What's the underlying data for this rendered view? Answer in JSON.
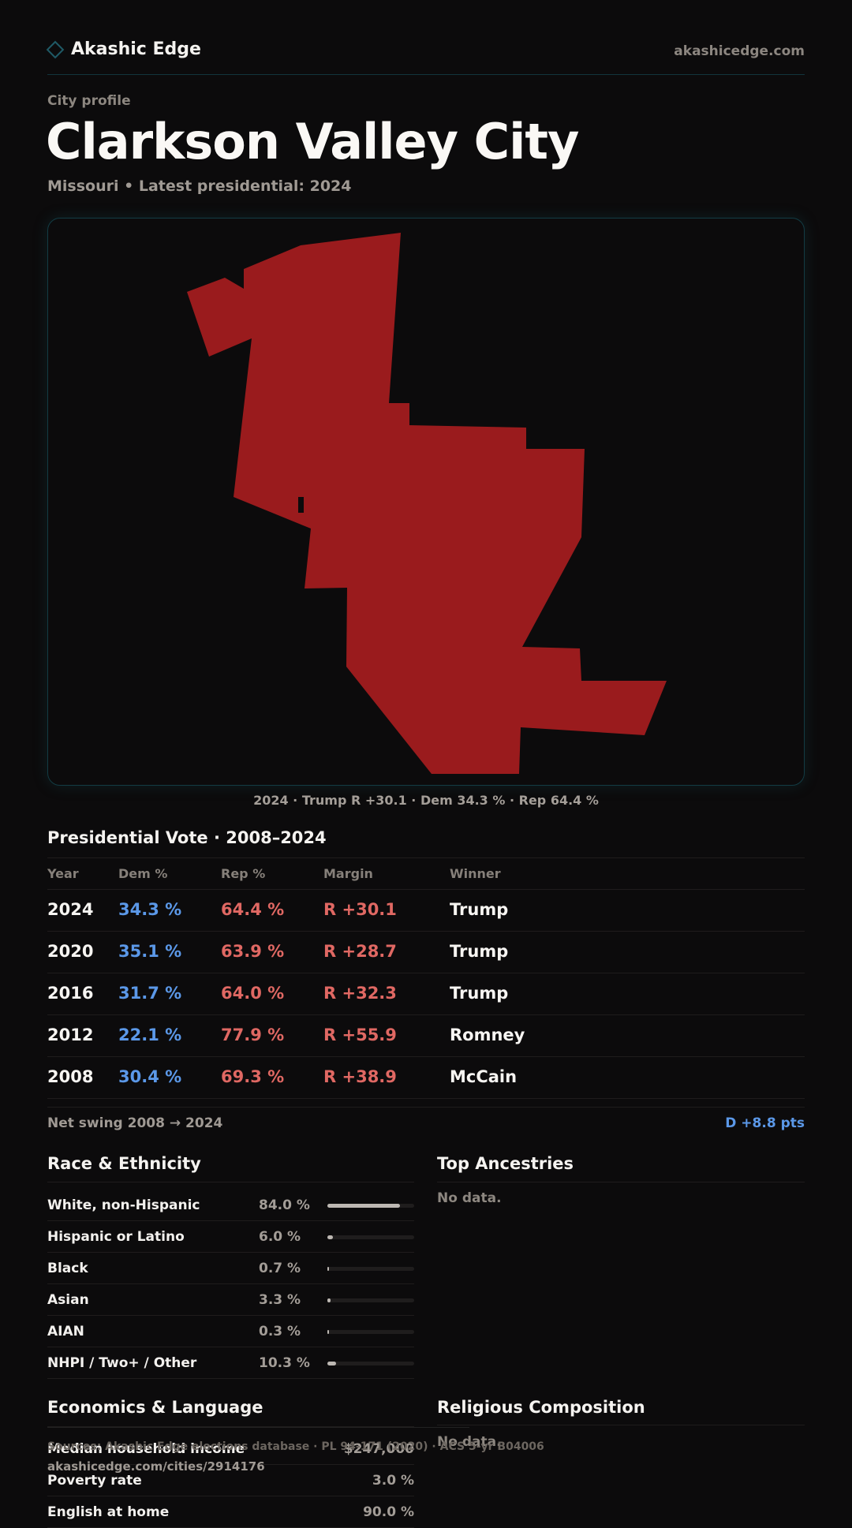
{
  "header": {
    "brand": "Akashic Edge",
    "site": "akashicedge.com"
  },
  "page": {
    "eyebrow": "City profile",
    "title": "Clarkson Valley City",
    "subtitle": "Missouri • Latest presidential: 2024"
  },
  "map": {
    "fill_color": "#9a1b1d",
    "caption": "2024 · Trump R +30.1 · Dem 34.3 % · Rep 64.4 %"
  },
  "vote": {
    "title": "Presidential Vote · 2008–2024",
    "columns": [
      "Year",
      "Dem %",
      "Rep %",
      "Margin",
      "Winner"
    ],
    "rows": [
      {
        "year": "2024",
        "dem": "34.3 %",
        "rep": "64.4 %",
        "margin": "R +30.1",
        "winner": "Trump"
      },
      {
        "year": "2020",
        "dem": "35.1 %",
        "rep": "63.9 %",
        "margin": "R +28.7",
        "winner": "Trump"
      },
      {
        "year": "2016",
        "dem": "31.7 %",
        "rep": "64.0 %",
        "margin": "R +32.3",
        "winner": "Trump"
      },
      {
        "year": "2012",
        "dem": "22.1 %",
        "rep": "77.9 %",
        "margin": "R +55.9",
        "winner": "Romney"
      },
      {
        "year": "2008",
        "dem": "30.4 %",
        "rep": "69.3 %",
        "margin": "R +38.9",
        "winner": "McCain"
      }
    ],
    "swing_label": "Net swing 2008 → 2024",
    "swing_value": "D +8.8 pts"
  },
  "race": {
    "title": "Race & Ethnicity",
    "rows": [
      {
        "label": "White, non-Hispanic",
        "pct": "84.0 %",
        "value": 84.0
      },
      {
        "label": "Hispanic or Latino",
        "pct": "6.0 %",
        "value": 6.0
      },
      {
        "label": "Black",
        "pct": "0.7 %",
        "value": 0.7
      },
      {
        "label": "Asian",
        "pct": "3.3 %",
        "value": 3.3
      },
      {
        "label": "AIAN",
        "pct": "0.3 %",
        "value": 0.3
      },
      {
        "label": "NHPI / Two+ / Other",
        "pct": "10.3 %",
        "value": 10.3
      }
    ]
  },
  "ancestries": {
    "title": "Top Ancestries",
    "empty": "No data."
  },
  "economics": {
    "title": "Economics & Language",
    "rows": [
      {
        "label": "Median household income",
        "value": "$247,000"
      },
      {
        "label": "Poverty rate",
        "value": "3.0 %"
      },
      {
        "label": "English at home",
        "value": "90.0 %"
      }
    ]
  },
  "religion": {
    "title": "Religious Composition",
    "empty": "No data."
  },
  "footer": {
    "sources": "Sources: Akashic Edge elections database · PL 94-171 (2020) · ACS 5-yr B04006",
    "url": "akashicedge.com/cities/2914176"
  }
}
